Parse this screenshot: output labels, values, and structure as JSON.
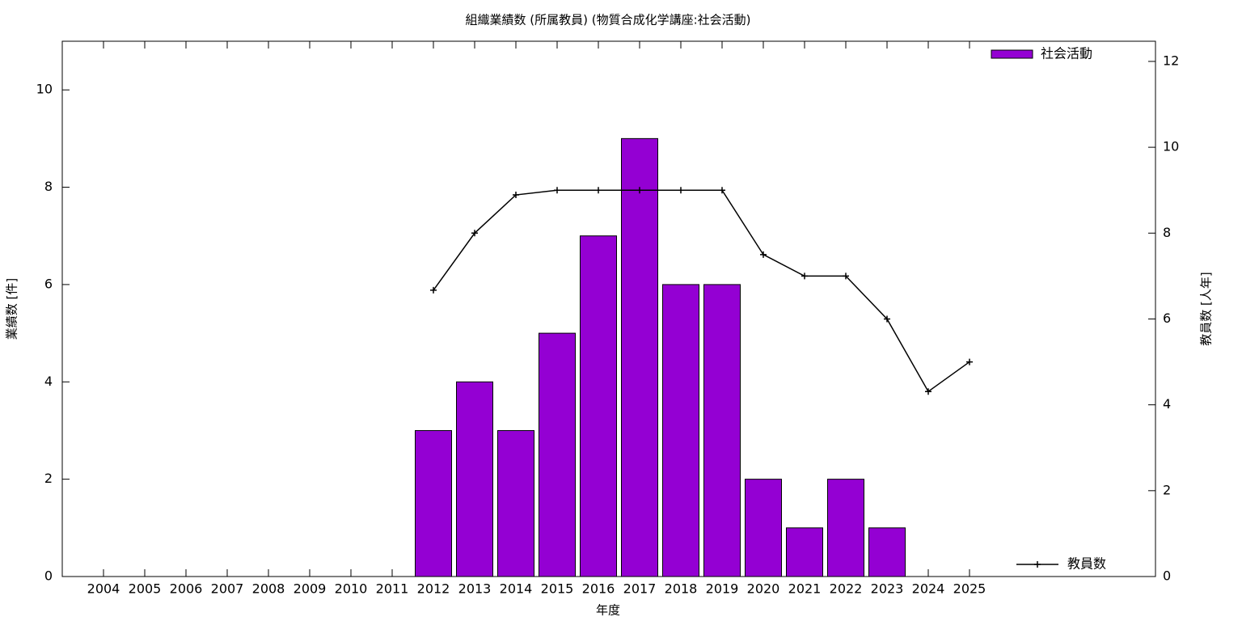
{
  "chart_data": {
    "type": "bar",
    "title": "組織業績数 (所属教員) (物質合成化学講座:社会活動)",
    "x_label": "年度",
    "y_label": "業績数 [件]",
    "y2_label": "教員数 [人年]",
    "categories": [
      "2004",
      "2005",
      "2006",
      "2007",
      "2008",
      "2009",
      "2010",
      "2011",
      "2012",
      "2013",
      "2014",
      "2015",
      "2016",
      "2017",
      "2018",
      "2019",
      "2020",
      "2021",
      "2022",
      "2023",
      "2024",
      "2025"
    ],
    "series": [
      {
        "name": "社会活動",
        "type": "bar",
        "color": "#9400d3",
        "values": [
          null,
          null,
          null,
          null,
          null,
          null,
          null,
          null,
          3,
          4,
          3,
          5,
          7,
          9,
          6,
          6,
          2,
          1,
          2,
          1,
          null,
          null
        ]
      },
      {
        "name": "教員数",
        "type": "line",
        "axis": "y2",
        "color": "#000000",
        "values": [
          null,
          null,
          null,
          null,
          null,
          null,
          null,
          null,
          6.67,
          8,
          8.89,
          9,
          9,
          9,
          9,
          9,
          7.5,
          7,
          7,
          6,
          4.31,
          5
        ]
      }
    ],
    "ylim": [
      0,
      11
    ],
    "yticks": [
      0,
      2,
      4,
      6,
      8,
      10
    ],
    "y2lim": [
      0,
      12.47
    ],
    "y2ticks": [
      0,
      2,
      4,
      6,
      8,
      10,
      12
    ],
    "legend": "top-right"
  }
}
